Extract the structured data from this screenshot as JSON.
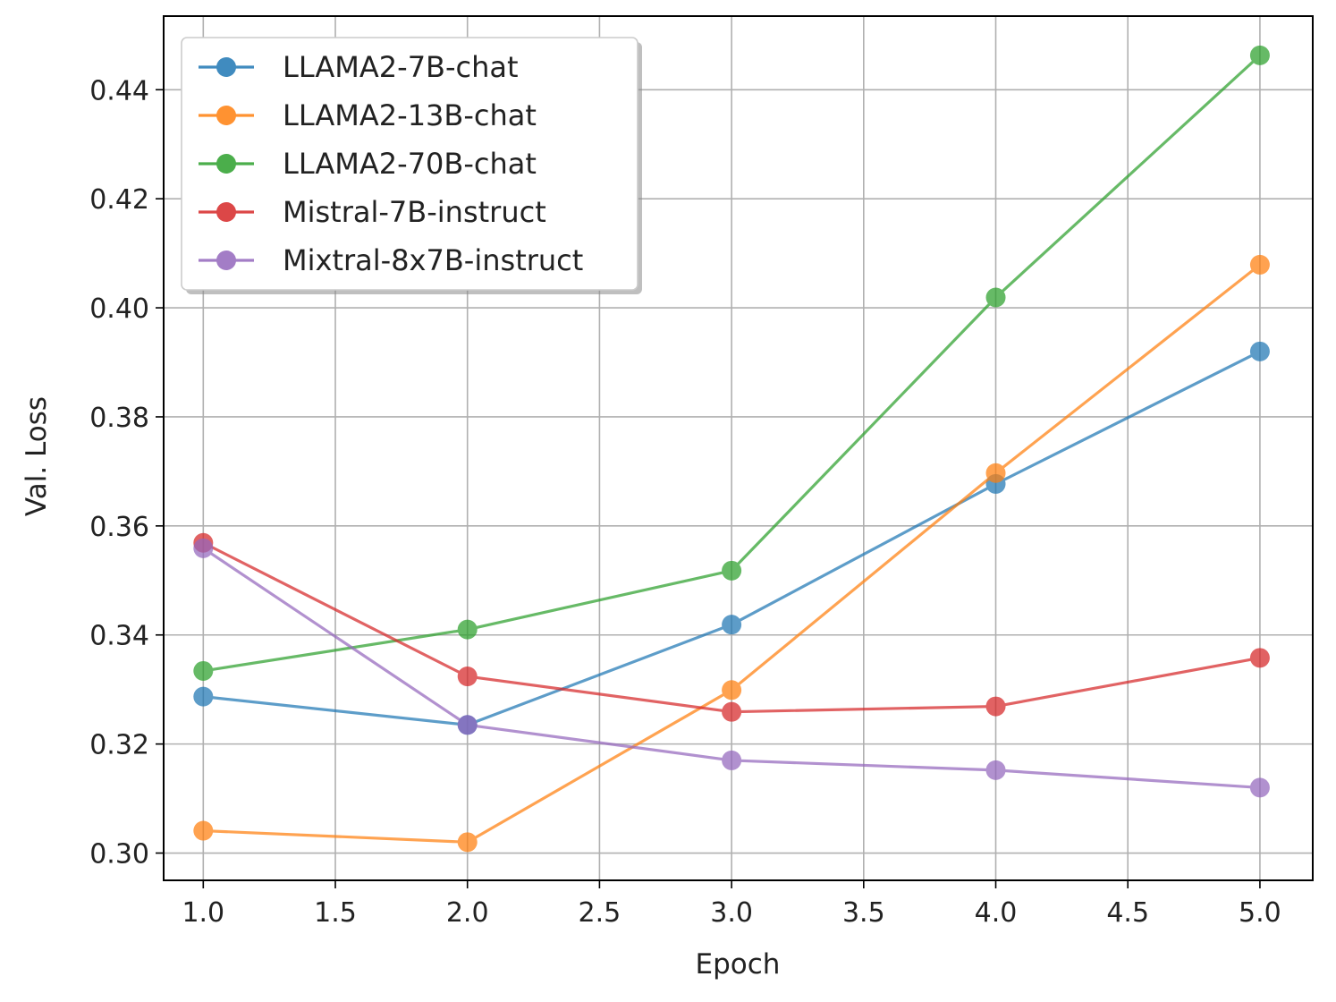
{
  "chart_data": {
    "type": "line",
    "title": "",
    "xlabel": "Epoch",
    "ylabel": "Val. Loss",
    "xlim": [
      0.85,
      5.2
    ],
    "ylim": [
      0.295,
      0.4535
    ],
    "x": [
      1.0,
      2.0,
      3.0,
      4.0,
      5.0
    ],
    "xticks": [
      1.0,
      1.5,
      2.0,
      2.5,
      3.0,
      3.5,
      4.0,
      4.5,
      5.0
    ],
    "xtick_labels": [
      "1.0",
      "1.5",
      "2.0",
      "2.5",
      "3.0",
      "3.5",
      "4.0",
      "4.5",
      "5.0"
    ],
    "yticks": [
      0.3,
      0.32,
      0.34,
      0.36,
      0.38,
      0.4,
      0.42,
      0.44
    ],
    "ytick_labels": [
      "0.30",
      "0.32",
      "0.34",
      "0.36",
      "0.38",
      "0.40",
      "0.42",
      "0.44"
    ],
    "grid": true,
    "legend_position": "top-left",
    "series": [
      {
        "name": "LLAMA2-7B-chat",
        "color": "#1f77b4",
        "values": [
          0.3287,
          0.3235,
          0.3419,
          0.3677,
          0.392
        ]
      },
      {
        "name": "LLAMA2-13B-chat",
        "color": "#ff7f0e",
        "values": [
          0.3041,
          0.302,
          0.3299,
          0.3697,
          0.4079
        ]
      },
      {
        "name": "LLAMA2-70B-chat",
        "color": "#2ca02c",
        "values": [
          0.3334,
          0.341,
          0.3518,
          0.4019,
          0.4463
        ]
      },
      {
        "name": "Mistral-7B-instruct",
        "color": "#d62728",
        "values": [
          0.3569,
          0.3324,
          0.3259,
          0.3269,
          0.3358
        ]
      },
      {
        "name": "Mixtral-8x7B-instruct",
        "color": "#9467bd",
        "values": [
          0.3559,
          0.3235,
          0.317,
          0.3152,
          0.312
        ]
      }
    ]
  }
}
